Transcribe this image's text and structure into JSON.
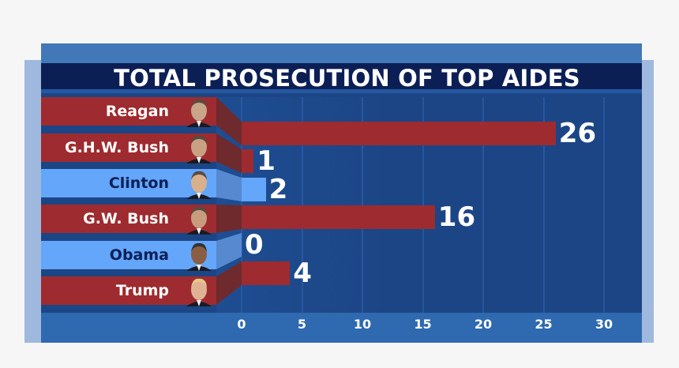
{
  "title": "TOTAL PROSECUTION OF TOP AIDES",
  "colors": {
    "red_bar": "#9e2b2f",
    "blue_bar": "#63a6fa",
    "panel": "#1c4585",
    "title_bar": "#0c1f55",
    "axis_band": "#2f69b0"
  },
  "rows": [
    {
      "label": "Reagan",
      "value": "26",
      "party": "red"
    },
    {
      "label": "G.H.W. Bush",
      "value": "1",
      "party": "red"
    },
    {
      "label": "Clinton",
      "value": "2",
      "party": "blue"
    },
    {
      "label": "G.W. Bush",
      "value": "16",
      "party": "red"
    },
    {
      "label": "Obama",
      "value": "0",
      "party": "blue"
    },
    {
      "label": "Trump",
      "value": "4",
      "party": "red"
    }
  ],
  "axis": {
    "ticks": [
      "0",
      "5",
      "10",
      "15",
      "20",
      "25",
      "30"
    ]
  },
  "chart_data": {
    "type": "bar",
    "orientation": "horizontal",
    "title": "TOTAL PROSECUTION OF TOP AIDES",
    "categories": [
      "Reagan",
      "G.H.W. Bush",
      "Clinton",
      "G.W. Bush",
      "Obama",
      "Trump"
    ],
    "values": [
      26,
      1,
      2,
      16,
      0,
      4
    ],
    "bar_colors": [
      "#9e2b2f",
      "#9e2b2f",
      "#63a6fa",
      "#9e2b2f",
      "#63a6fa",
      "#9e2b2f"
    ],
    "xlabel": "",
    "ylabel": "",
    "xlim": [
      0,
      30
    ],
    "xticks": [
      0,
      5,
      10,
      15,
      20,
      25,
      30
    ],
    "grid": true,
    "legend": null
  }
}
